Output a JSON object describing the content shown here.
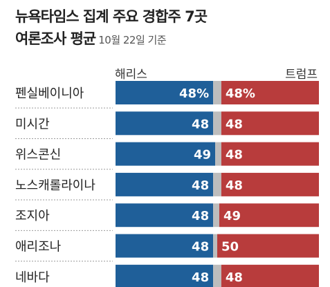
{
  "title": {
    "line1": "뉴욕타임스 집계 주요 경합주 7곳",
    "line2": "여론조사 평균",
    "subtitle": "10월 22일 기준"
  },
  "legend": {
    "left": "해리스",
    "right": "트럼프"
  },
  "colors": {
    "harris": "#1f5f99",
    "trump": "#b83c3c",
    "undecided": "#bdbdbd",
    "divider": "#9a9a9a"
  },
  "chart_data": {
    "type": "bar",
    "stacked": true,
    "orientation": "horizontal",
    "title": "뉴욕타임스 집계 주요 경합주 7곳 여론조사 평균",
    "subtitle": "10월 22일 기준",
    "categories": [
      "펜실베이니아",
      "미시간",
      "위스콘신",
      "노스캐롤라이나",
      "조지아",
      "애리조나",
      "네바다"
    ],
    "series": [
      {
        "name": "해리스",
        "values": [
          48,
          48,
          49,
          48,
          48,
          48,
          48
        ]
      },
      {
        "name": "트럼프",
        "values": [
          48,
          48,
          48,
          48,
          49,
          50,
          48
        ]
      }
    ],
    "value_labels": [
      [
        "48%",
        "48%"
      ],
      [
        "48",
        "48"
      ],
      [
        "49",
        "48"
      ],
      [
        "48",
        "48"
      ],
      [
        "48",
        "49"
      ],
      [
        "48",
        "50"
      ],
      [
        "48",
        "48"
      ]
    ],
    "xlim": [
      0,
      100
    ],
    "legend": "top"
  }
}
